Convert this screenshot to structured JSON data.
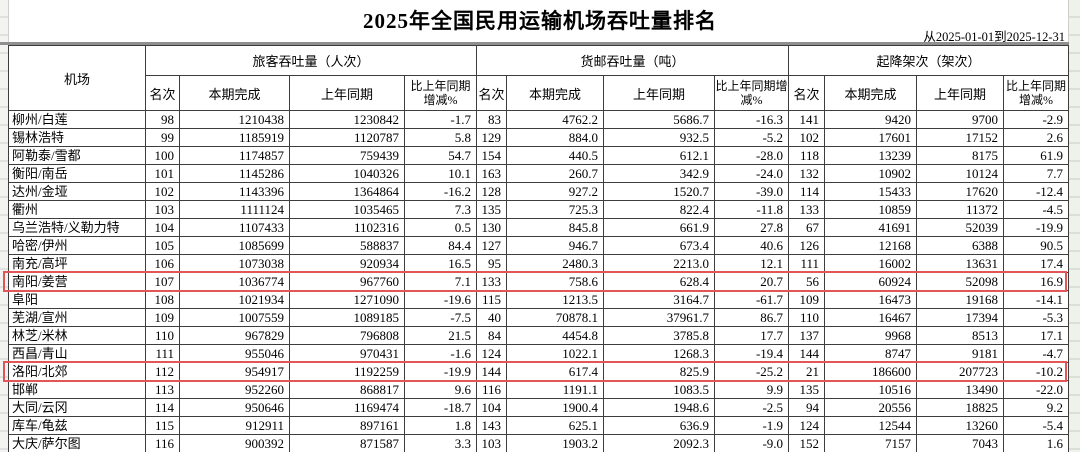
{
  "title": "2025年全国民用运输机场吞吐量排名",
  "date_range": "从2025-01-01到2025-12-31",
  "colors": {
    "highlight_border": "#e15757",
    "top_rule": "#8f8f8f",
    "grid_line": "#3d3d3d"
  },
  "table": {
    "col_airport": "机场",
    "groups": [
      {
        "label": "旅客吞吐量（人次）"
      },
      {
        "label": "货邮吞吐量（吨）"
      },
      {
        "label": "起降架次（架次）"
      }
    ],
    "sub_headers": [
      "名次",
      "本期完成",
      "上年同期",
      "比上年同期增减%"
    ],
    "rows": [
      {
        "airport": "柳州/白莲",
        "pax": [
          "98",
          "1210438",
          "1230842",
          "-1.7"
        ],
        "cargo": [
          "83",
          "4762.2",
          "5686.7",
          "-16.3"
        ],
        "movements": [
          "141",
          "9420",
          "9700",
          "-2.9"
        ],
        "highlighted": false
      },
      {
        "airport": "锡林浩特",
        "pax": [
          "99",
          "1185919",
          "1120787",
          "5.8"
        ],
        "cargo": [
          "129",
          "884.0",
          "932.5",
          "-5.2"
        ],
        "movements": [
          "102",
          "17601",
          "17152",
          "2.6"
        ],
        "highlighted": false
      },
      {
        "airport": "阿勒泰/雪都",
        "pax": [
          "100",
          "1174857",
          "759439",
          "54.7"
        ],
        "cargo": [
          "154",
          "440.5",
          "612.1",
          "-28.0"
        ],
        "movements": [
          "118",
          "13239",
          "8175",
          "61.9"
        ],
        "highlighted": false
      },
      {
        "airport": "衡阳/南岳",
        "pax": [
          "101",
          "1145286",
          "1040326",
          "10.1"
        ],
        "cargo": [
          "163",
          "260.7",
          "342.9",
          "-24.0"
        ],
        "movements": [
          "132",
          "10902",
          "10124",
          "7.7"
        ],
        "highlighted": false
      },
      {
        "airport": "达州/金垭",
        "pax": [
          "102",
          "1143396",
          "1364864",
          "-16.2"
        ],
        "cargo": [
          "128",
          "927.2",
          "1520.7",
          "-39.0"
        ],
        "movements": [
          "114",
          "15433",
          "17620",
          "-12.4"
        ],
        "highlighted": false
      },
      {
        "airport": "衢州",
        "pax": [
          "103",
          "1111124",
          "1035465",
          "7.3"
        ],
        "cargo": [
          "135",
          "725.3",
          "822.4",
          "-11.8"
        ],
        "movements": [
          "133",
          "10859",
          "11372",
          "-4.5"
        ],
        "highlighted": false
      },
      {
        "airport": "乌兰浩特/义勒力特",
        "pax": [
          "104",
          "1107433",
          "1102316",
          "0.5"
        ],
        "cargo": [
          "130",
          "845.8",
          "661.9",
          "27.8"
        ],
        "movements": [
          "67",
          "41691",
          "52039",
          "-19.9"
        ],
        "highlighted": false
      },
      {
        "airport": "哈密/伊州",
        "pax": [
          "105",
          "1085699",
          "588837",
          "84.4"
        ],
        "cargo": [
          "127",
          "946.7",
          "673.4",
          "40.6"
        ],
        "movements": [
          "126",
          "12168",
          "6388",
          "90.5"
        ],
        "highlighted": false
      },
      {
        "airport": "南充/高坪",
        "pax": [
          "106",
          "1073038",
          "920934",
          "16.5"
        ],
        "cargo": [
          "95",
          "2480.3",
          "2213.0",
          "12.1"
        ],
        "movements": [
          "111",
          "16002",
          "13631",
          "17.4"
        ],
        "highlighted": false
      },
      {
        "airport": "南阳/姜营",
        "pax": [
          "107",
          "1036774",
          "967760",
          "7.1"
        ],
        "cargo": [
          "133",
          "758.6",
          "628.4",
          "20.7"
        ],
        "movements": [
          "56",
          "60924",
          "52098",
          "16.9"
        ],
        "highlighted": true
      },
      {
        "airport": "阜阳",
        "pax": [
          "108",
          "1021934",
          "1271090",
          "-19.6"
        ],
        "cargo": [
          "115",
          "1213.5",
          "3164.7",
          "-61.7"
        ],
        "movements": [
          "109",
          "16473",
          "19168",
          "-14.1"
        ],
        "highlighted": false
      },
      {
        "airport": "芜湖/宣州",
        "pax": [
          "109",
          "1007559",
          "1089185",
          "-7.5"
        ],
        "cargo": [
          "40",
          "70878.1",
          "37961.7",
          "86.7"
        ],
        "movements": [
          "110",
          "16467",
          "17394",
          "-5.3"
        ],
        "highlighted": false
      },
      {
        "airport": "林芝/米林",
        "pax": [
          "110",
          "967829",
          "796808",
          "21.5"
        ],
        "cargo": [
          "84",
          "4454.8",
          "3785.8",
          "17.7"
        ],
        "movements": [
          "137",
          "9968",
          "8513",
          "17.1"
        ],
        "highlighted": false
      },
      {
        "airport": "西昌/青山",
        "pax": [
          "111",
          "955046",
          "970431",
          "-1.6"
        ],
        "cargo": [
          "124",
          "1022.1",
          "1268.3",
          "-19.4"
        ],
        "movements": [
          "144",
          "8747",
          "9181",
          "-4.7"
        ],
        "highlighted": false
      },
      {
        "airport": "洛阳/北郊",
        "pax": [
          "112",
          "954917",
          "1192259",
          "-19.9"
        ],
        "cargo": [
          "144",
          "617.4",
          "825.9",
          "-25.2"
        ],
        "movements": [
          "21",
          "186600",
          "207723",
          "-10.2"
        ],
        "highlighted": true
      },
      {
        "airport": "邯郸",
        "pax": [
          "113",
          "952260",
          "868817",
          "9.6"
        ],
        "cargo": [
          "116",
          "1191.1",
          "1083.5",
          "9.9"
        ],
        "movements": [
          "135",
          "10516",
          "13490",
          "-22.0"
        ],
        "highlighted": false
      },
      {
        "airport": "大同/云冈",
        "pax": [
          "114",
          "950646",
          "1169474",
          "-18.7"
        ],
        "cargo": [
          "104",
          "1900.4",
          "1948.6",
          "-2.5"
        ],
        "movements": [
          "94",
          "20556",
          "18825",
          "9.2"
        ],
        "highlighted": false
      },
      {
        "airport": "库车/龟兹",
        "pax": [
          "115",
          "912911",
          "897161",
          "1.8"
        ],
        "cargo": [
          "143",
          "625.1",
          "636.9",
          "-1.9"
        ],
        "movements": [
          "124",
          "12544",
          "13260",
          "-5.4"
        ],
        "highlighted": false
      },
      {
        "airport": "大庆/萨尔图",
        "pax": [
          "116",
          "900392",
          "871587",
          "3.3"
        ],
        "cargo": [
          "103",
          "1903.2",
          "2092.3",
          "-9.0"
        ],
        "movements": [
          "152",
          "7157",
          "7043",
          "1.6"
        ],
        "highlighted": false
      }
    ]
  }
}
